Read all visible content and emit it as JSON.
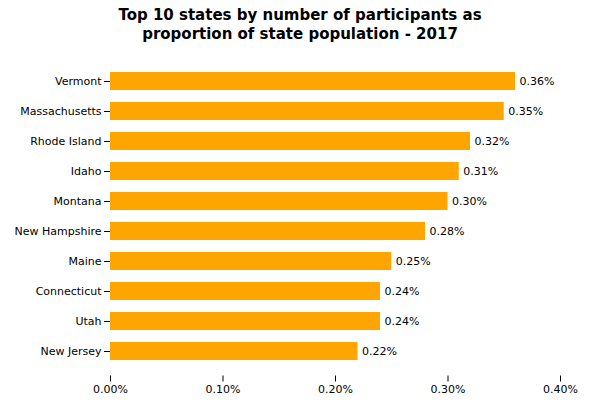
{
  "chart_data": {
    "type": "bar",
    "orientation": "horizontal",
    "title": "Top 10 states by number of participants as\nproportion of state population - 2017",
    "categories": [
      "Vermont",
      "Massachusetts",
      "Rhode Island",
      "Idaho",
      "Montana",
      "New Hampshire",
      "Maine",
      "Connecticut",
      "Utah",
      "New Jersey"
    ],
    "values": [
      0.0036,
      0.0035,
      0.0032,
      0.0031,
      0.003,
      0.0028,
      0.0025,
      0.0024,
      0.0024,
      0.0022
    ],
    "value_labels": [
      "0.36%",
      "0.35%",
      "0.32%",
      "0.31%",
      "0.30%",
      "0.28%",
      "0.25%",
      "0.24%",
      "0.24%",
      "0.22%"
    ],
    "data_labels": true,
    "color": "#FFA500",
    "xlim": [
      0,
      0.004
    ],
    "xticks": [
      {
        "value": 0.0,
        "label": "0.00%"
      },
      {
        "value": 0.001,
        "label": "0.10%"
      },
      {
        "value": 0.002,
        "label": "0.20%"
      },
      {
        "value": 0.003,
        "label": "0.30%"
      },
      {
        "value": 0.004,
        "label": "0.40%"
      }
    ],
    "grid": false
  }
}
